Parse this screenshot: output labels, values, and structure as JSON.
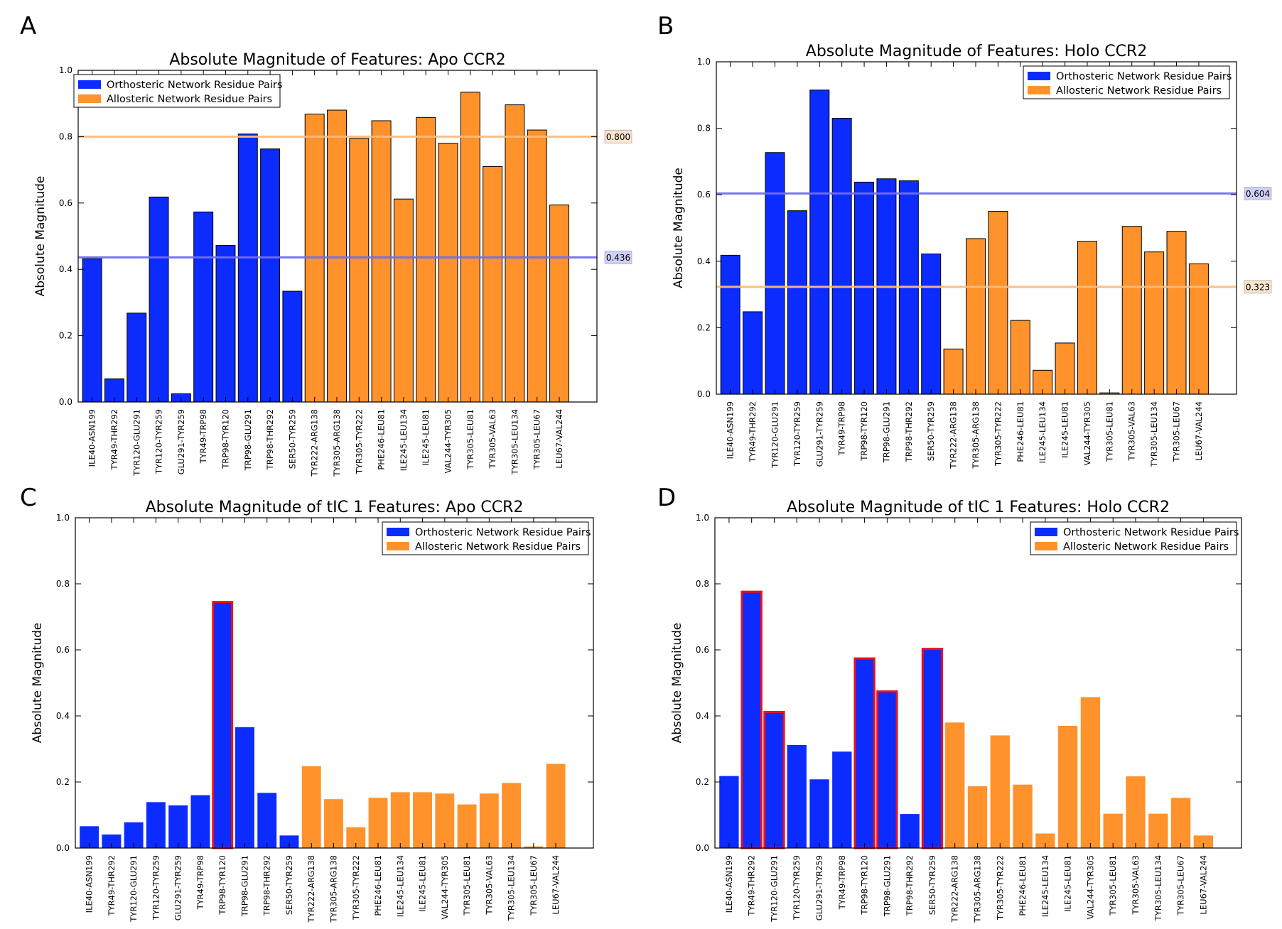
{
  "panel_letters": [
    "A",
    "B",
    "C",
    "D"
  ],
  "chart_data": [
    {
      "type": "bar",
      "letter": "A",
      "title": "Absolute Magnitude of Features: Apo CCR2",
      "xlabel": "",
      "ylabel": "Absolute Magnitude",
      "ylim": [
        0,
        1.0
      ],
      "yticks": [
        "0.0",
        "0.2",
        "0.4",
        "0.6",
        "0.8",
        "1.0"
      ],
      "legend_position": "top-left",
      "legend": [
        {
          "label": "Orthosteric Network Residue Pairs",
          "color": "#0b2bff"
        },
        {
          "label": "Allosteric Network Residue Pairs",
          "color": "#ff922b"
        }
      ],
      "bar_edge": "black",
      "categories": [
        "ILE40-ASN199",
        "TYR49-THR292",
        "TYR120-GLU291",
        "TYR120-TYR259",
        "GLU291-TYR259",
        "TYR49-TRP98",
        "TRP98-TYR120",
        "TRP98-GLU291",
        "TRP98-THR292",
        "SER50-TYR259",
        "TYR222-ARG138",
        "TYR305-ARG138",
        "TYR305-TYR222",
        "PHE246-LEU81",
        "ILE245-LEU134",
        "ILE245-LEU81",
        "VAL244-TYR305",
        "TYR305-LEU81",
        "TYR305-VAL63",
        "TYR305-LEU134",
        "TYR305-LEU67",
        "LEU67-VAL244"
      ],
      "values": [
        0.432,
        0.07,
        0.268,
        0.618,
        0.025,
        0.573,
        0.472,
        0.808,
        0.763,
        0.334,
        0.868,
        0.88,
        0.795,
        0.848,
        0.612,
        0.858,
        0.78,
        0.934,
        0.71,
        0.896,
        0.82,
        0.594
      ],
      "groups": [
        "o",
        "o",
        "o",
        "o",
        "o",
        "o",
        "o",
        "o",
        "o",
        "o",
        "a",
        "a",
        "a",
        "a",
        "a",
        "a",
        "a",
        "a",
        "a",
        "a",
        "a",
        "a"
      ],
      "highlighted": [],
      "hlines": [
        {
          "value": 0.8,
          "label": "0.800",
          "color": "#ffbb80",
          "box": "#fbe3cc"
        },
        {
          "value": 0.436,
          "label": "0.436",
          "color": "#6f6ff0",
          "box": "#cfd0f7"
        }
      ]
    },
    {
      "type": "bar",
      "letter": "B",
      "title": "Absolute Magnitude of Features: Holo CCR2",
      "xlabel": "",
      "ylabel": "Absolute Magnitude",
      "ylim": [
        0,
        1.0
      ],
      "yticks": [
        "0.0",
        "0.2",
        "0.4",
        "0.6",
        "0.8",
        "1.0"
      ],
      "legend_position": "top-right",
      "legend": [
        {
          "label": "Orthosteric Network Residue Pairs",
          "color": "#0b2bff"
        },
        {
          "label": "Allosteric Network Residue Pairs",
          "color": "#ff922b"
        }
      ],
      "bar_edge": "black",
      "categories": [
        "ILE40-ASN199",
        "TYR49-THR292",
        "TYR120-GLU291",
        "TYR120-TYR259",
        "GLU291-TYR259",
        "TYR49-TRP98",
        "TRP98-TYR120",
        "TRP98-GLU291",
        "TRP98-THR292",
        "SER50-TYR259",
        "TYR222-ARG138",
        "TYR305-ARG138",
        "TYR305-TYR222",
        "PHE246-LEU81",
        "ILE245-LEU134",
        "ILE245-LEU81",
        "VAL244-TYR305",
        "TYR305-LEU81",
        "TYR305-VAL63",
        "TYR305-LEU134",
        "TYR305-LEU67",
        "LEU67-VAL244"
      ],
      "values": [
        0.418,
        0.248,
        0.727,
        0.552,
        0.915,
        0.83,
        0.638,
        0.648,
        0.642,
        0.422,
        0.136,
        0.468,
        0.55,
        0.222,
        0.072,
        0.154,
        0.46,
        0.004,
        0.505,
        0.428,
        0.49,
        0.392
      ],
      "groups": [
        "o",
        "o",
        "o",
        "o",
        "o",
        "o",
        "o",
        "o",
        "o",
        "o",
        "a",
        "a",
        "a",
        "a",
        "a",
        "a",
        "a",
        "a",
        "a",
        "a",
        "a",
        "a"
      ],
      "highlighted": [],
      "hlines": [
        {
          "value": 0.604,
          "label": "0.604",
          "color": "#6f6ff0",
          "box": "#cfd0f7"
        },
        {
          "value": 0.323,
          "label": "0.323",
          "color": "#ffbb80",
          "box": "#fbe3cc"
        }
      ]
    },
    {
      "type": "bar",
      "letter": "C",
      "title": "Absolute Magnitude of tIC 1 Features: Apo CCR2",
      "xlabel": "",
      "ylabel": "Absolute Magnitude",
      "ylim": [
        0,
        1.0
      ],
      "yticks": [
        "0.0",
        "0.2",
        "0.4",
        "0.6",
        "0.8",
        "1.0"
      ],
      "legend_position": "top-right",
      "legend": [
        {
          "label": "Orthosteric Network Residue Pairs",
          "color": "#0b2bff"
        },
        {
          "label": "Allosteric Network Residue Pairs",
          "color": "#ff922b"
        }
      ],
      "bar_edge": "none",
      "categories": [
        "ILE40-ASN199",
        "TYR49-THR292",
        "TYR120-GLU291",
        "TYR120-TYR259",
        "GLU291-TYR259",
        "TYR49-TRP98",
        "TRP98-TYR120",
        "TRP98-GLU291",
        "TRP98-THR292",
        "SER50-TYR259",
        "TYR222-ARG138",
        "TYR305-ARG138",
        "TYR305-TYR222",
        "PHE246-LEU81",
        "ILE245-LEU134",
        "ILE245-LEU81",
        "VAL244-TYR305",
        "TYR305-LEU81",
        "TYR305-VAL63",
        "TYR305-LEU134",
        "TYR305-LEU67",
        "LEU67-VAL244"
      ],
      "values": [
        0.066,
        0.041,
        0.078,
        0.139,
        0.129,
        0.16,
        0.745,
        0.366,
        0.167,
        0.038,
        0.248,
        0.148,
        0.063,
        0.152,
        0.169,
        0.169,
        0.165,
        0.132,
        0.165,
        0.197,
        0.005,
        0.255
      ],
      "groups": [
        "o",
        "o",
        "o",
        "o",
        "o",
        "o",
        "o",
        "o",
        "o",
        "o",
        "a",
        "a",
        "a",
        "a",
        "a",
        "a",
        "a",
        "a",
        "a",
        "a",
        "a",
        "a"
      ],
      "highlighted": [
        6
      ],
      "hlines": []
    },
    {
      "type": "bar",
      "letter": "D",
      "title": "Absolute Magnitude of tIC 1 Features: Holo CCR2",
      "xlabel": "",
      "ylabel": "Absolute Magnitude",
      "ylim": [
        0,
        1.0
      ],
      "yticks": [
        "0.0",
        "0.2",
        "0.4",
        "0.6",
        "0.8",
        "1.0"
      ],
      "legend_position": "top-right",
      "legend": [
        {
          "label": "Orthosteric Network Residue Pairs",
          "color": "#0b2bff"
        },
        {
          "label": "Allosteric Network Residue Pairs",
          "color": "#ff922b"
        }
      ],
      "bar_edge": "none",
      "categories": [
        "ILE40-ASN199",
        "TYR49-THR292",
        "TYR120-GLU291",
        "TYR120-TYR259",
        "GLU291-TYR259",
        "TYR49-TRP98",
        "TRP98-TYR120",
        "TRP98-GLU291",
        "TRP98-THR292",
        "SER50-TYR259",
        "TYR222-ARG138",
        "TYR305-ARG138",
        "TYR305-TYR222",
        "PHE246-LEU81",
        "ILE245-LEU134",
        "ILE245-LEU81",
        "VAL244-TYR305",
        "TYR305-LEU81",
        "TYR305-VAL63",
        "TYR305-LEU134",
        "TYR305-LEU67",
        "LEU67-VAL244"
      ],
      "values": [
        0.218,
        0.776,
        0.412,
        0.312,
        0.208,
        0.292,
        0.574,
        0.474,
        0.103,
        0.603,
        0.38,
        0.187,
        0.341,
        0.192,
        0.044,
        0.37,
        0.457,
        0.104,
        0.217,
        0.104,
        0.152,
        0.038
      ],
      "groups": [
        "o",
        "o",
        "o",
        "o",
        "o",
        "o",
        "o",
        "o",
        "o",
        "o",
        "a",
        "a",
        "a",
        "a",
        "a",
        "a",
        "a",
        "a",
        "a",
        "a",
        "a",
        "a"
      ],
      "highlighted": [
        1,
        2,
        6,
        7,
        9
      ],
      "hlines": []
    }
  ]
}
